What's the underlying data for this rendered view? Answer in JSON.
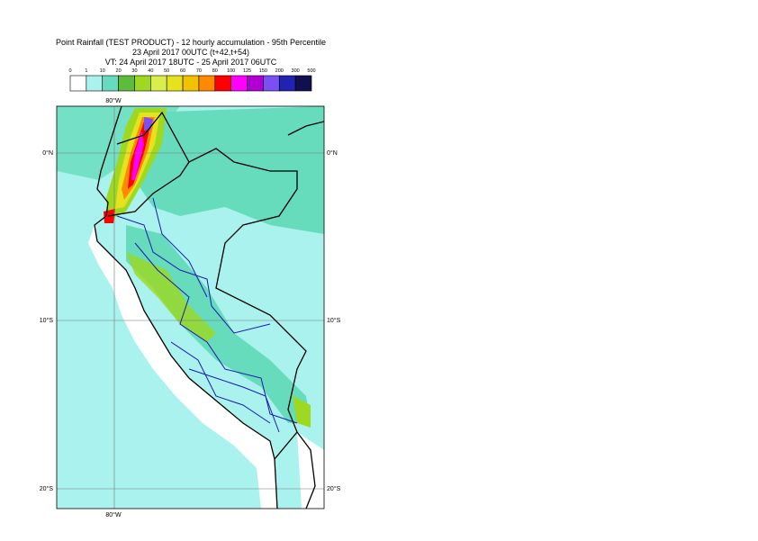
{
  "title": {
    "line1": "Point Rainfall (TEST PRODUCT) - 12 hourly accumulation - 95th Percentile",
    "line2": "23 April 2017 00UTC (t+42,t+54)",
    "line3": "VT: 24 April 2017 18UTC - 25 April 2017 06UTC"
  },
  "colorbar": {
    "labels": [
      "0",
      "1",
      "10",
      "20",
      "30",
      "40",
      "50",
      "60",
      "70",
      "80",
      "100",
      "125",
      "150",
      "200",
      "300",
      "500"
    ],
    "colors": [
      "#ffffff",
      "#aaf2ee",
      "#66dcbc",
      "#5cbd3c",
      "#9ed820",
      "#d9ee4c",
      "#e6e21e",
      "#f2c200",
      "#ff8a00",
      "#ff0000",
      "#ff00ff",
      "#b000d4",
      "#7a50f2",
      "#2222b2",
      "#101050"
    ]
  },
  "map": {
    "lat_labels": [
      "0°N",
      "10°S",
      "20°S"
    ],
    "lon_label": "80°W"
  }
}
